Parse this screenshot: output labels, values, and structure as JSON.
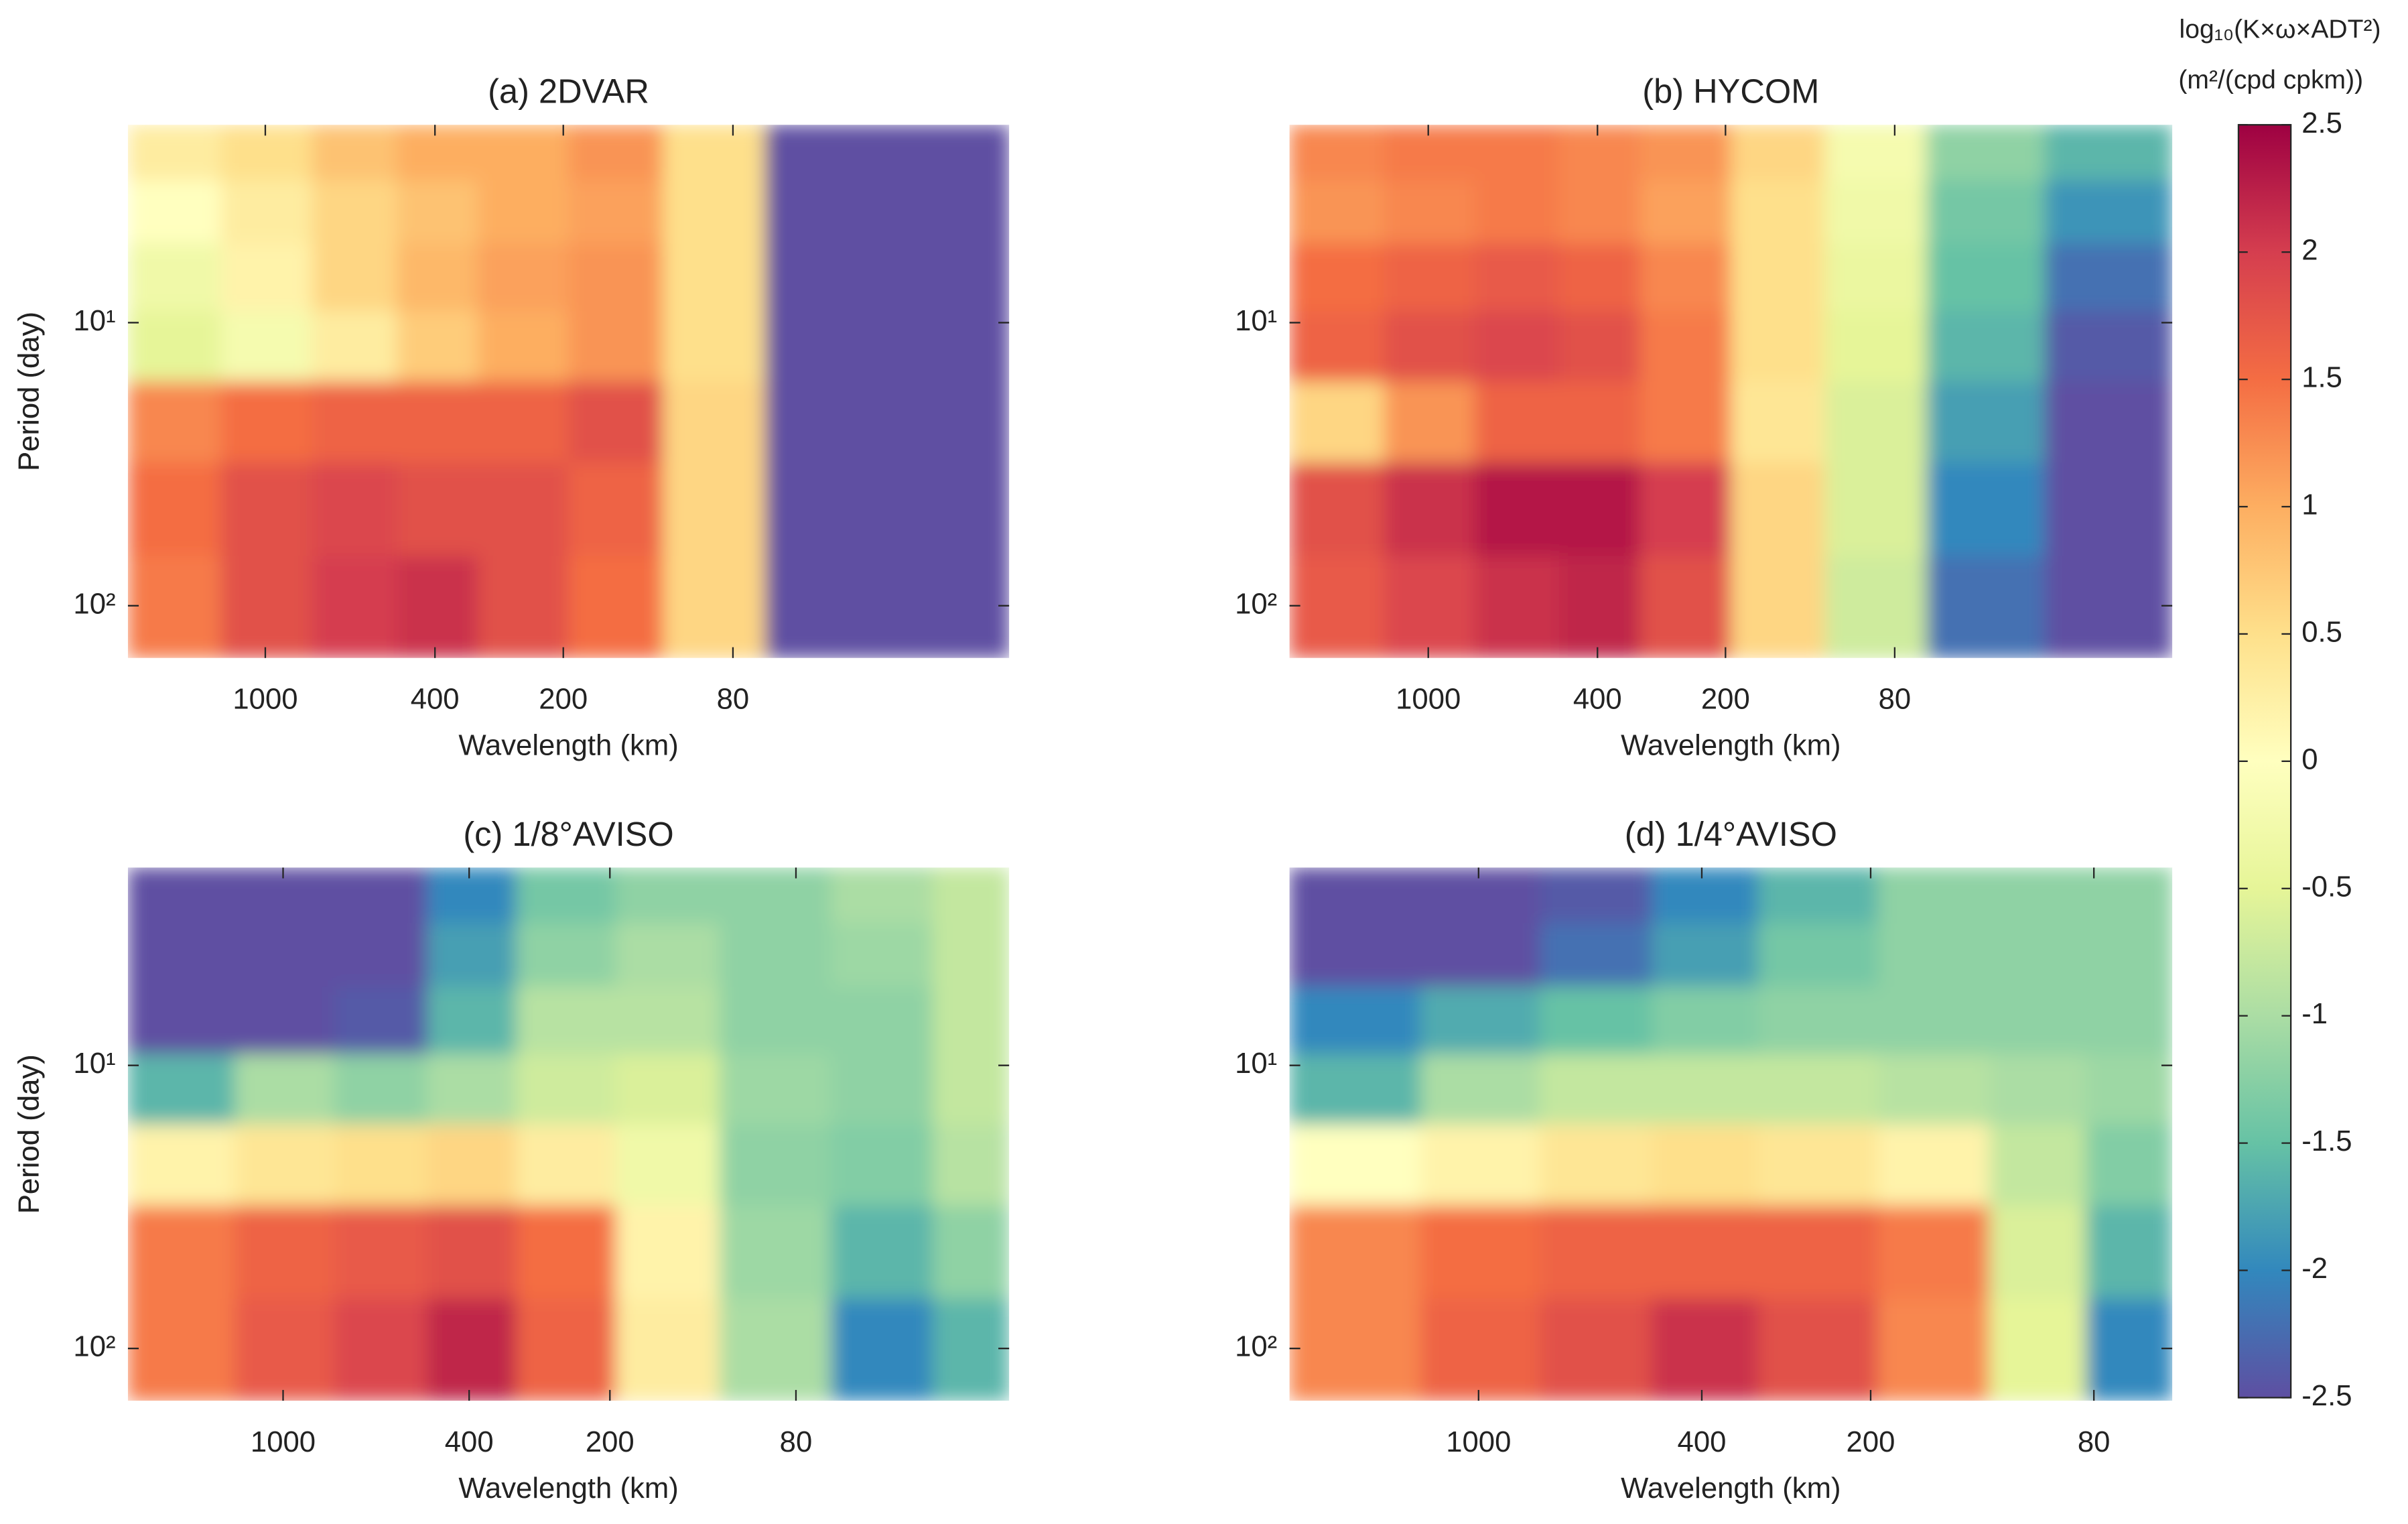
{
  "chart_data": [
    {
      "type": "heatmap",
      "title": "(a) 2DVAR",
      "xlabel": "Wavelength (km)",
      "ylabel": "Period (day)",
      "xscale": "log",
      "yscale": "log",
      "xlim": [
        2100,
        18
      ],
      "ylim": [
        2,
        153
      ],
      "xticks": [
        1000,
        400,
        200,
        80
      ],
      "yticks": [
        {
          "value": 10,
          "label": "10¹"
        },
        {
          "value": 100,
          "label": "10²"
        }
      ],
      "x": [
        1600,
        1000,
        600,
        400,
        250,
        150,
        90,
        50,
        25
      ],
      "y": [
        2.5,
        4,
        7,
        12,
        22,
        45,
        100
      ],
      "z": [
        [
          0.3,
          0.5,
          0.8,
          1.0,
          1.0,
          1.2,
          0.5,
          -2.5,
          -2.5
        ],
        [
          0,
          0.3,
          0.6,
          0.8,
          1.0,
          1.1,
          0.5,
          -2.5,
          -2.5
        ],
        [
          -0.3,
          0.2,
          0.6,
          0.9,
          1.1,
          1.2,
          0.5,
          -2.5,
          -2.5
        ],
        [
          -0.5,
          -0.2,
          0.3,
          0.7,
          1.0,
          1.2,
          0.5,
          -2.5,
          -2.5
        ],
        [
          1.3,
          1.5,
          1.6,
          1.6,
          1.6,
          1.8,
          0.6,
          -2.5,
          -2.5
        ],
        [
          1.5,
          1.8,
          1.9,
          1.8,
          1.8,
          1.6,
          0.6,
          -2.5,
          -2.5
        ],
        [
          1.4,
          1.8,
          2.0,
          2.1,
          1.8,
          1.5,
          0.6,
          -2.5,
          -2.5
        ]
      ]
    },
    {
      "type": "heatmap",
      "title": "(b) HYCOM",
      "xlabel": "Wavelength (km)",
      "ylabel": "Period (day)",
      "xscale": "log",
      "yscale": "log",
      "xlim": [
        2120,
        17.8
      ],
      "ylim": [
        2,
        153
      ],
      "xticks": [
        1000,
        400,
        200,
        80
      ],
      "yticks": [
        {
          "value": 10,
          "label": "10¹"
        },
        {
          "value": 100,
          "label": "10²"
        }
      ],
      "x": [
        1600,
        1000,
        600,
        400,
        250,
        150,
        90,
        50,
        25
      ],
      "y": [
        2.5,
        4,
        7,
        12,
        22,
        45,
        100
      ],
      "z": [
        [
          1.3,
          1.4,
          1.4,
          1.3,
          1.2,
          0.6,
          -0.2,
          -1.2,
          -1.6
        ],
        [
          1.2,
          1.3,
          1.4,
          1.3,
          1.1,
          0.5,
          -0.3,
          -1.4,
          -1.9
        ],
        [
          1.5,
          1.6,
          1.7,
          1.6,
          1.3,
          0.5,
          -0.4,
          -1.5,
          -2.2
        ],
        [
          1.6,
          1.8,
          1.9,
          1.8,
          1.4,
          0.5,
          -0.5,
          -1.6,
          -2.4
        ],
        [
          0.6,
          1.2,
          1.6,
          1.6,
          1.4,
          0.4,
          -0.6,
          -1.8,
          -2.5
        ],
        [
          1.8,
          2.1,
          2.3,
          2.3,
          2.0,
          0.6,
          -0.6,
          -2.0,
          -2.5
        ],
        [
          1.7,
          1.9,
          2.1,
          2.2,
          1.8,
          0.6,
          -0.7,
          -2.2,
          -2.5
        ]
      ]
    },
    {
      "type": "heatmap",
      "title": "(c) 1/8°AVISO",
      "xlabel": "Wavelength (km)",
      "ylabel": "Period (day)",
      "xscale": "log",
      "yscale": "log",
      "xlim": [
        2147,
        28
      ],
      "ylim": [
        2,
        153
      ],
      "xticks": [
        1000,
        400,
        200,
        80
      ],
      "yticks": [
        {
          "value": 10,
          "label": "10¹"
        },
        {
          "value": 100,
          "label": "10²"
        }
      ],
      "x": [
        1600,
        1000,
        600,
        400,
        250,
        150,
        90,
        50,
        33
      ],
      "y": [
        2.5,
        4,
        7,
        12,
        22,
        45,
        100
      ],
      "z": [
        [
          -2.5,
          -2.5,
          -2.5,
          -2.0,
          -1.4,
          -1.2,
          -1.2,
          -1.0,
          -0.8
        ],
        [
          -2.5,
          -2.5,
          -2.5,
          -1.8,
          -1.2,
          -1.0,
          -1.2,
          -1.1,
          -0.8
        ],
        [
          -2.5,
          -2.5,
          -2.4,
          -1.6,
          -0.9,
          -0.9,
          -1.2,
          -1.2,
          -0.8
        ],
        [
          -1.6,
          -1.0,
          -1.2,
          -1.0,
          -0.7,
          -0.6,
          -1.1,
          -1.2,
          -0.8
        ],
        [
          0.2,
          0.4,
          0.5,
          0.6,
          0.3,
          -0.3,
          -1.2,
          -1.3,
          -0.9
        ],
        [
          1.4,
          1.6,
          1.7,
          1.8,
          1.5,
          0.2,
          -1.1,
          -1.6,
          -1.2
        ],
        [
          1.4,
          1.7,
          1.9,
          2.2,
          1.6,
          0.3,
          -1.0,
          -2.0,
          -1.6
        ]
      ]
    },
    {
      "type": "heatmap",
      "title": "(d) 1/4°AVISO",
      "xlabel": "Wavelength (km)",
      "ylabel": "Period (day)",
      "xscale": "log",
      "yscale": "log",
      "xlim": [
        2173,
        58
      ],
      "ylim": [
        2,
        153
      ],
      "xticks": [
        1000,
        400,
        200,
        80
      ],
      "yticks": [
        {
          "value": 10,
          "label": "10¹"
        },
        {
          "value": 100,
          "label": "10²"
        }
      ],
      "x": [
        1600,
        1000,
        600,
        400,
        250,
        150,
        100,
        68
      ],
      "y": [
        2.5,
        4,
        7,
        12,
        22,
        45,
        100
      ],
      "z": [
        [
          -2.5,
          -2.5,
          -2.4,
          -2.0,
          -1.6,
          -1.2,
          -1.2,
          -1.2
        ],
        [
          -2.5,
          -2.5,
          -2.2,
          -1.8,
          -1.4,
          -1.2,
          -1.2,
          -1.2
        ],
        [
          -2.0,
          -1.7,
          -1.5,
          -1.3,
          -1.2,
          -1.2,
          -1.2,
          -1.2
        ],
        [
          -1.6,
          -1.0,
          -0.8,
          -0.8,
          -0.8,
          -0.9,
          -1.0,
          -1.1
        ],
        [
          0.0,
          0.2,
          0.4,
          0.5,
          0.4,
          0.2,
          -0.8,
          -1.3
        ],
        [
          1.3,
          1.5,
          1.6,
          1.6,
          1.6,
          1.4,
          -0.6,
          -1.6
        ],
        [
          1.3,
          1.6,
          1.8,
          2.1,
          1.8,
          1.3,
          -0.5,
          -2.0
        ]
      ]
    }
  ],
  "colorbar": {
    "label": [
      "log₁₀(K×ω×ADT²)",
      "(m²/(cpd cpkm))"
    ],
    "lim": [
      -2.5,
      2.5
    ],
    "ticks": [
      2.5,
      2,
      1.5,
      1,
      0.5,
      0,
      -0.5,
      -1,
      -1.5,
      -2,
      -2.5
    ],
    "colors": [
      "#5e4fa2",
      "#3288bd",
      "#66c2a5",
      "#abdda4",
      "#e6f598",
      "#ffffbf",
      "#fee08b",
      "#fdae61",
      "#f46d43",
      "#d53e4f",
      "#9e0142"
    ]
  }
}
